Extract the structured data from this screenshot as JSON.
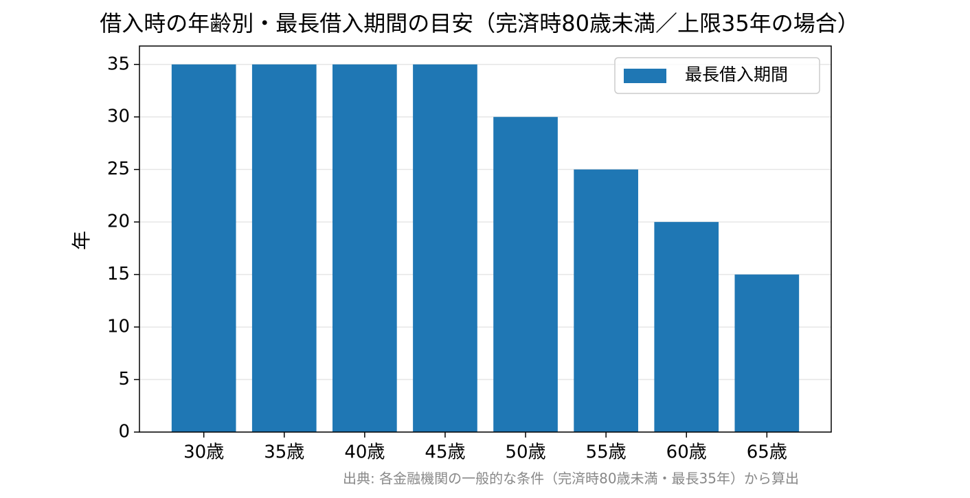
{
  "chart_data": {
    "type": "bar",
    "title": "借入時の年齢別・最長借入期間の目安（完済時80歳未満／上限35年の場合）",
    "ylabel": "年",
    "source": "出典: 各金融機関の一般的な条件（完済時80歳未満・最長35年）から算出",
    "categories": [
      "30歳",
      "35歳",
      "40歳",
      "45歳",
      "50歳",
      "55歳",
      "60歳",
      "65歳"
    ],
    "series": [
      {
        "name": "最長借入期間",
        "color": "#1f77b4",
        "values": [
          35,
          35,
          35,
          35,
          30,
          25,
          20,
          15
        ]
      }
    ],
    "ylim": [
      0,
      36.75
    ],
    "yticks": [
      0,
      5,
      10,
      15,
      20,
      25,
      30,
      35
    ],
    "grid": true,
    "legend": "upper right"
  }
}
